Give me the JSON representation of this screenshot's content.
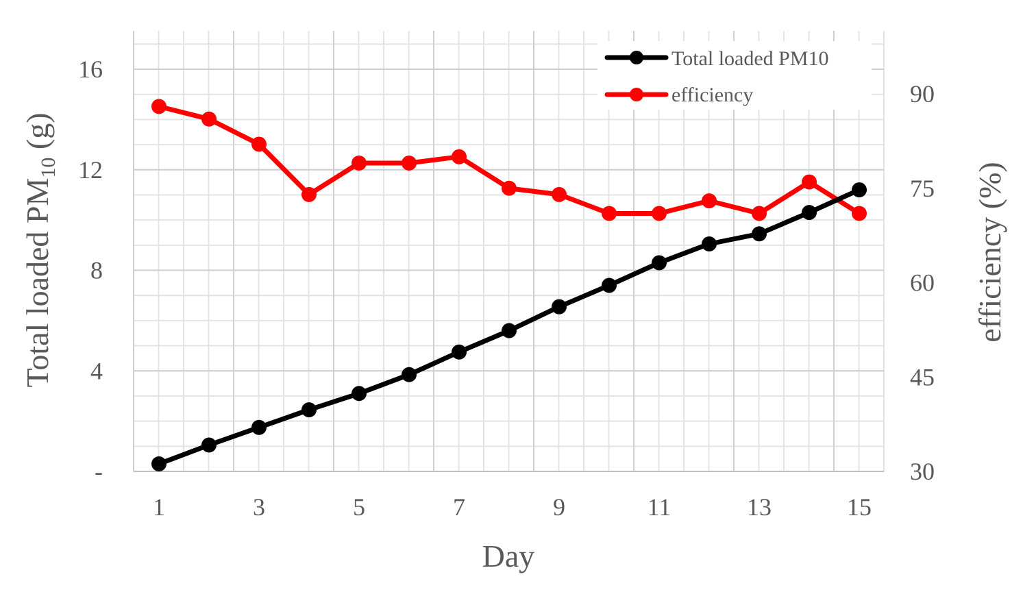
{
  "chart_data": {
    "type": "line",
    "x": [
      1,
      2,
      3,
      4,
      5,
      6,
      7,
      8,
      9,
      10,
      11,
      12,
      13,
      14,
      15
    ],
    "x_tick_labels": [
      "1",
      "3",
      "5",
      "7",
      "9",
      "11",
      "13",
      "15"
    ],
    "xlabel": "Day",
    "y_left": {
      "label_main": "Total loaded PM",
      "label_sub": "10",
      "label_unit": " (g)",
      "tick_labels": [
        "-",
        "4",
        "8",
        "12",
        "16"
      ],
      "ylim": [
        0,
        17.5
      ]
    },
    "y_right": {
      "label": "efficiency  (%)",
      "tick_labels": [
        "30",
        "45",
        "60",
        "75",
        "90"
      ],
      "ylim": [
        30,
        100
      ]
    },
    "grid": true,
    "legend_position": "top-right",
    "series": [
      {
        "name": "Total loaded PM10",
        "axis": "left",
        "color": "#000000",
        "values": [
          0.3,
          1.05,
          1.75,
          2.45,
          3.1,
          3.85,
          4.75,
          5.6,
          6.55,
          7.4,
          8.3,
          9.05,
          9.45,
          10.3,
          11.2
        ]
      },
      {
        "name": "efficiency",
        "axis": "right",
        "color": "#ff0000",
        "values": [
          88,
          86,
          82,
          74,
          79,
          79,
          80,
          75,
          74,
          71,
          71,
          73,
          71,
          76,
          71
        ]
      }
    ]
  }
}
